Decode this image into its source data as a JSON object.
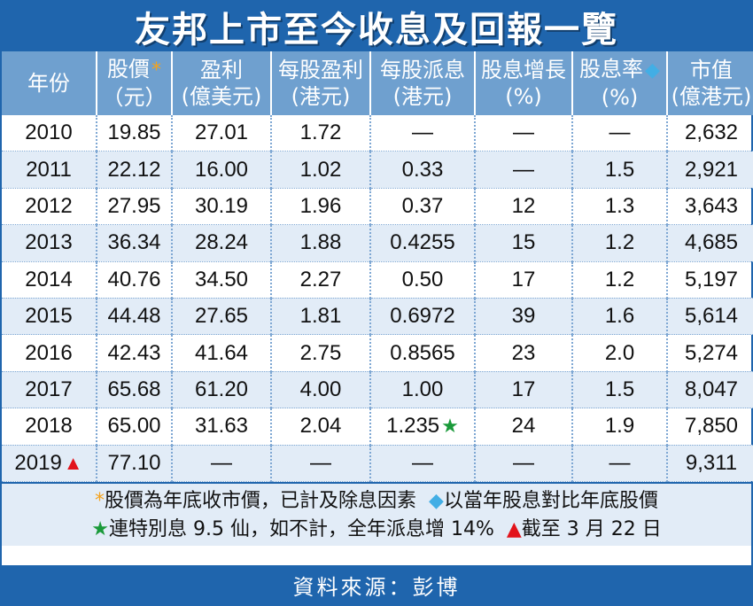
{
  "title": "友邦上市至今收息及回報一覽",
  "colors": {
    "header_blue": "#1f65ad",
    "header_light": "#6fa0cf",
    "row_shade": "#e2ecf7",
    "asterisk": "#f4a21c",
    "diamond": "#42aee5",
    "star": "#1a9a3a",
    "triangle": "#e2131b"
  },
  "symbols": {
    "asterisk": "*",
    "diamond": "◆",
    "star": "★",
    "triangle": "▲"
  },
  "headers": [
    {
      "line1": "年份",
      "line2": ""
    },
    {
      "line1": "股價",
      "line2": "（元）"
    },
    {
      "line1": "盈利",
      "line2": "(億美元)"
    },
    {
      "line1": "每股盈利",
      "line2": "(港元)"
    },
    {
      "line1": "每股派息",
      "line2": "(港元)"
    },
    {
      "line1": "股息增長",
      "line2": "(%)"
    },
    {
      "line1": "股息率",
      "line2": "(%)"
    },
    {
      "line1": "市值",
      "line2": "(億港元)"
    }
  ],
  "rows": [
    {
      "year": "2010",
      "price": "19.85",
      "profit": "27.01",
      "eps": "1.72",
      "dps": "—",
      "growth": "—",
      "yield": "—",
      "cap": "2,632"
    },
    {
      "year": "2011",
      "price": "22.12",
      "profit": "16.00",
      "eps": "1.02",
      "dps": "0.33",
      "growth": "—",
      "yield": "1.5",
      "cap": "2,921"
    },
    {
      "year": "2012",
      "price": "27.95",
      "profit": "30.19",
      "eps": "1.96",
      "dps": "0.37",
      "growth": "12",
      "yield": "1.3",
      "cap": "3,643"
    },
    {
      "year": "2013",
      "price": "36.34",
      "profit": "28.24",
      "eps": "1.88",
      "dps": "0.4255",
      "growth": "15",
      "yield": "1.2",
      "cap": "4,685"
    },
    {
      "year": "2014",
      "price": "40.76",
      "profit": "34.50",
      "eps": "2.27",
      "dps": "0.50",
      "growth": "17",
      "yield": "1.2",
      "cap": "5,197"
    },
    {
      "year": "2015",
      "price": "44.48",
      "profit": "27.65",
      "eps": "1.81",
      "dps": "0.6972",
      "growth": "39",
      "yield": "1.6",
      "cap": "5,614"
    },
    {
      "year": "2016",
      "price": "42.43",
      "profit": "41.64",
      "eps": "2.75",
      "dps": "0.8565",
      "growth": "23",
      "yield": "2.0",
      "cap": "5,274"
    },
    {
      "year": "2017",
      "price": "65.68",
      "profit": "61.20",
      "eps": "4.00",
      "dps": "1.00",
      "growth": "17",
      "yield": "1.5",
      "cap": "8,047"
    },
    {
      "year": "2018",
      "price": "65.00",
      "profit": "31.63",
      "eps": "2.04",
      "dps": "1.235",
      "growth": "24",
      "yield": "1.9",
      "cap": "7,850"
    },
    {
      "year": "2019",
      "price": "77.10",
      "profit": "—",
      "eps": "—",
      "dps": "—",
      "growth": "—",
      "yield": "—",
      "cap": "9,311"
    }
  ],
  "notes": {
    "asterisk_text": "股價為年底收市價，已計及除息因素",
    "diamond_text": "以當年股息對比年底股價",
    "star_text": "連特別息 9.5 仙，如不計，全年派息增 14%",
    "triangle_text": "截至 3 月 22 日"
  },
  "source": "資料來源：彭博"
}
